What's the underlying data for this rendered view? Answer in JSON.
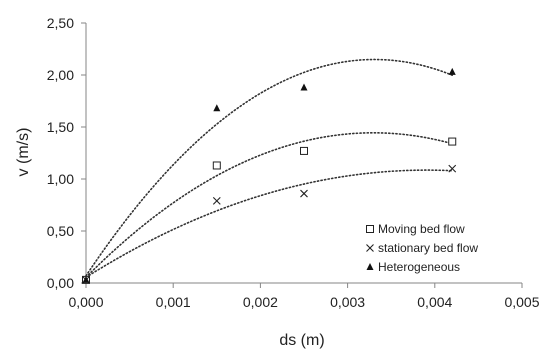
{
  "chart_data": {
    "type": "scatter",
    "xlabel": "ds (m)",
    "ylabel": "v (m/s)",
    "xlim": [
      0,
      0.005
    ],
    "ylim": [
      0,
      2.5
    ],
    "x_ticks": [
      "0,000",
      "0,001",
      "0,002",
      "0,003",
      "0,004",
      "0,005"
    ],
    "y_ticks": [
      "0,00",
      "0,50",
      "1,00",
      "1,50",
      "2,00",
      "2,50"
    ],
    "grid": false,
    "legend_position": "bottom-right",
    "trendline": "polynomial (order 2), dotted",
    "series": [
      {
        "name": "Moving bed flow",
        "marker": "open-square",
        "x": [
          0,
          0.0015,
          0.0025,
          0.0042
        ],
        "y": [
          0.03,
          1.13,
          1.27,
          1.36
        ]
      },
      {
        "name": "stationary bed flow",
        "marker": "x",
        "x": [
          0,
          0.0015,
          0.0025,
          0.0042
        ],
        "y": [
          0.03,
          0.79,
          0.86,
          1.1
        ]
      },
      {
        "name": "Heterogeneous",
        "marker": "filled-triangle",
        "x": [
          0,
          0.0015,
          0.0025,
          0.0042
        ],
        "y": [
          0.03,
          1.68,
          1.88,
          2.03
        ]
      }
    ]
  }
}
